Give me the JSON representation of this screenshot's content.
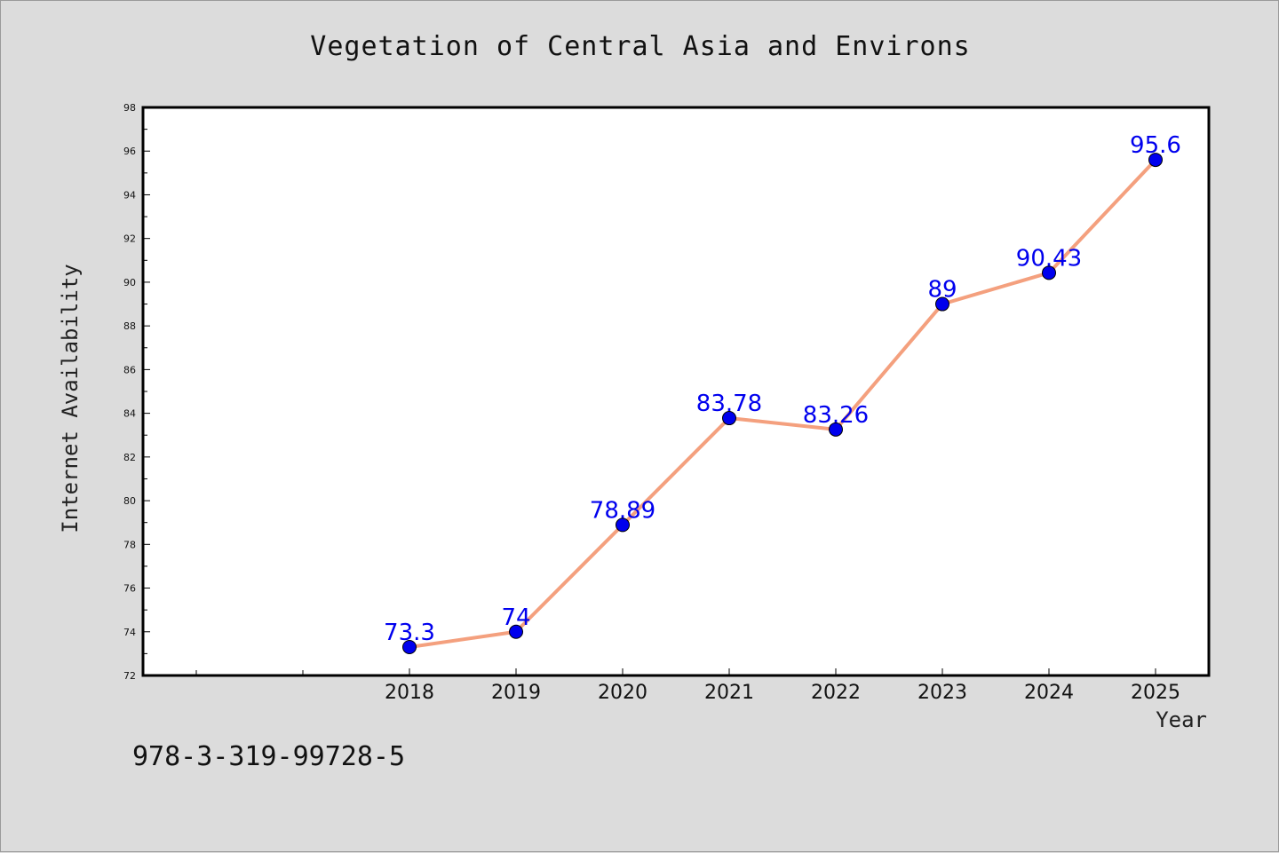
{
  "chart_data": {
    "type": "line",
    "title": "Vegetation of Central Asia and Environs",
    "xlabel": "Year",
    "ylabel": "Internet Availability",
    "categories": [
      "2018",
      "2019",
      "2020",
      "2021",
      "2022",
      "2023",
      "2024",
      "2025"
    ],
    "values": [
      73.3,
      74,
      78.89,
      83.78,
      83.26,
      89,
      90.43,
      95.6
    ],
    "data_labels": [
      "73.3",
      "74",
      "78.89",
      "83.78",
      "83.26",
      "89",
      "90.43",
      "95.6"
    ],
    "ylim": [
      72,
      98
    ],
    "yticks": [
      72,
      74,
      76,
      78,
      80,
      82,
      84,
      86,
      88,
      90,
      92,
      94,
      96,
      98
    ],
    "line_color": "#f4a07e",
    "marker_color": "#0000ee",
    "label_color": "#0000ee",
    "grid": false,
    "legend": false
  },
  "footer": {
    "isbn": "978-3-319-99728-5"
  }
}
